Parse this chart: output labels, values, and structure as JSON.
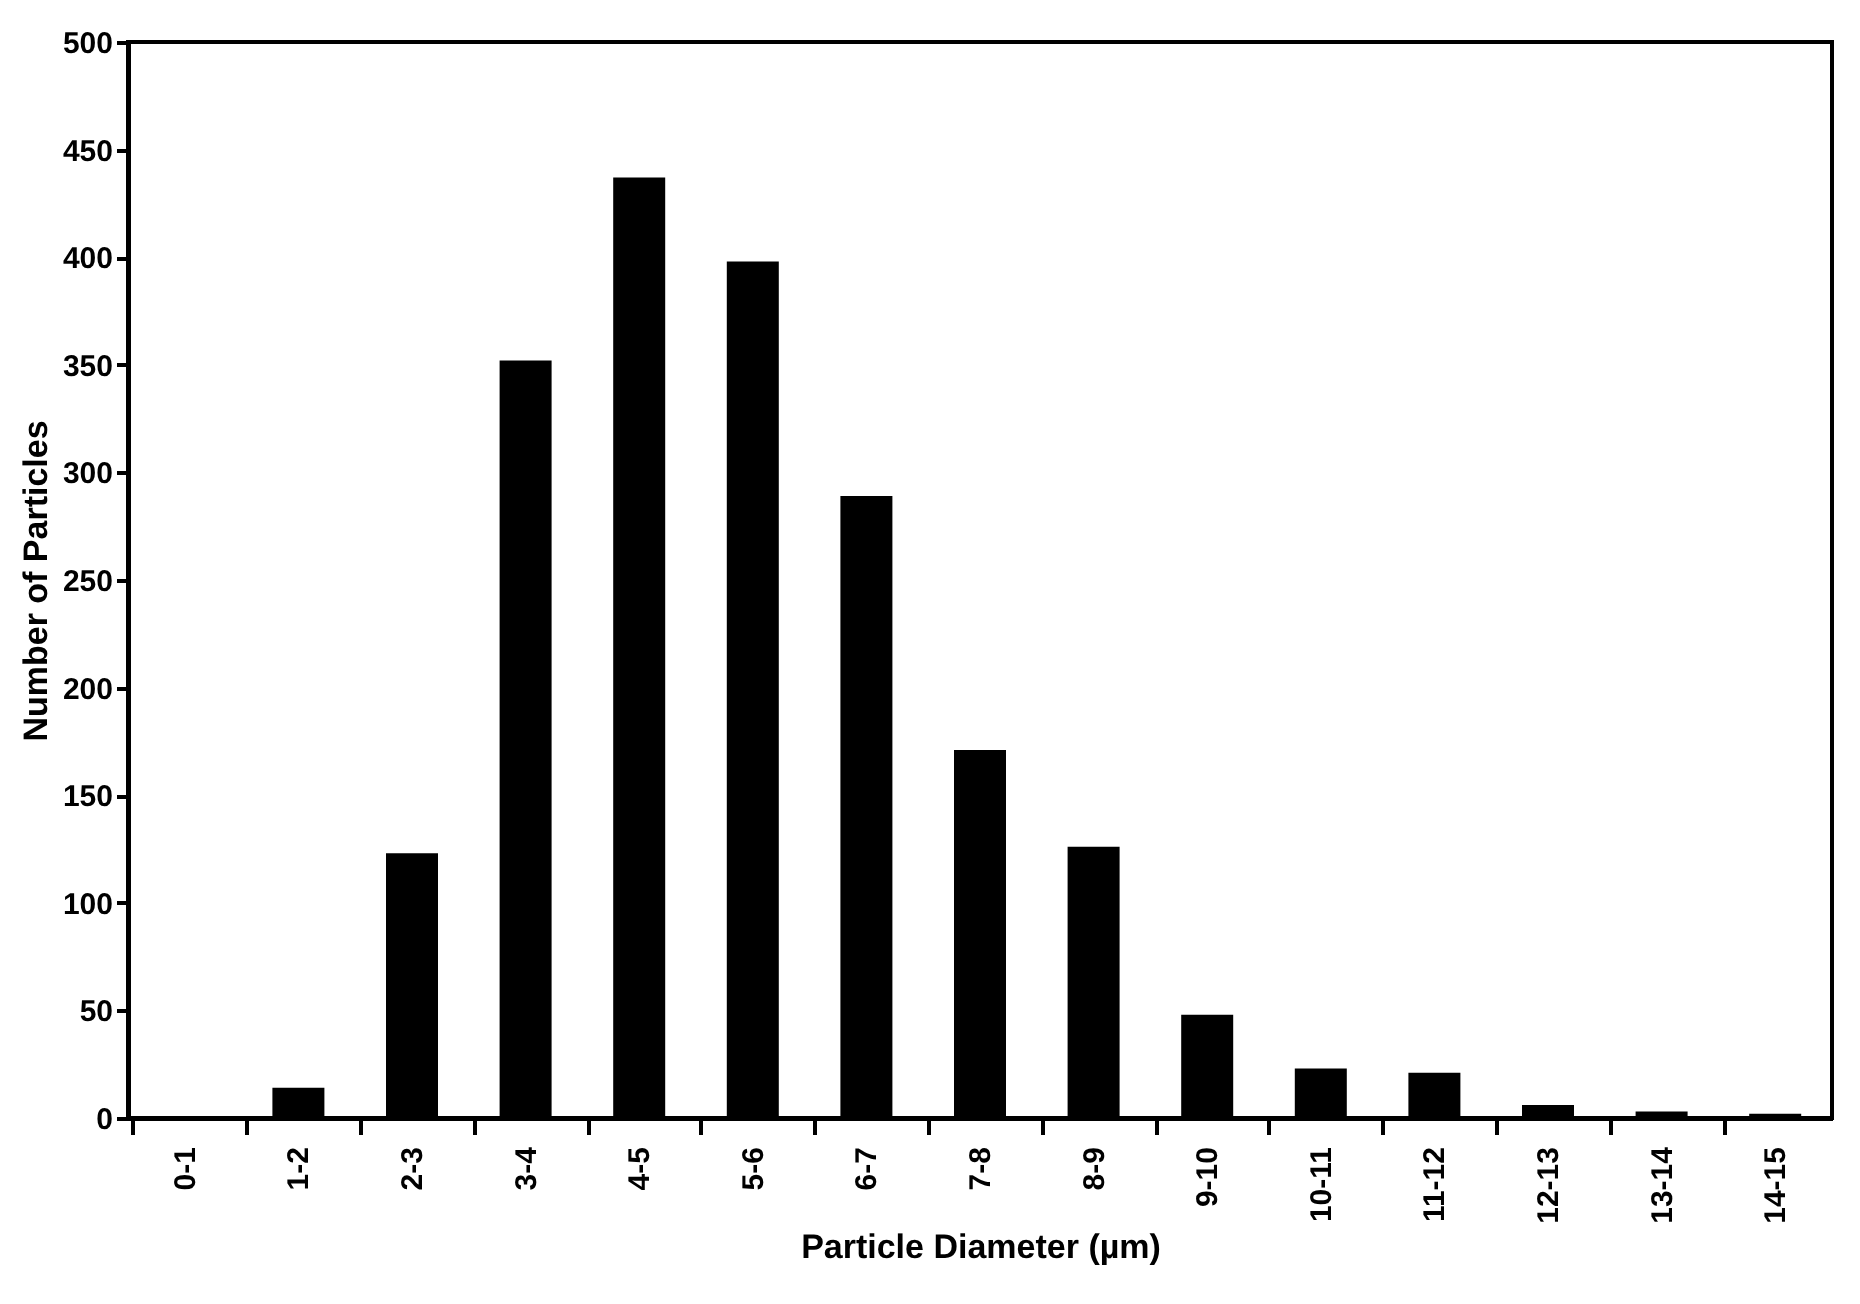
{
  "chart_data": {
    "type": "bar",
    "xlabel": "Particle Diameter (µm)",
    "ylabel": "Number of Particles",
    "categories": [
      "0-1",
      "1-2",
      "2-3",
      "3-4",
      "4-5",
      "5-6",
      "6-7",
      "7-8",
      "8-9",
      "9-10",
      "10-11",
      "11-12",
      "12-13",
      "13-14",
      "14-15"
    ],
    "values": [
      0,
      14,
      123,
      352,
      437,
      398,
      289,
      171,
      126,
      48,
      23,
      21,
      6,
      3,
      2
    ],
    "color": "#000000",
    "ylim": [
      0,
      500
    ],
    "yticks": [
      0,
      50,
      100,
      150,
      200,
      250,
      300,
      350,
      400,
      450,
      500
    ],
    "grid": false
  }
}
